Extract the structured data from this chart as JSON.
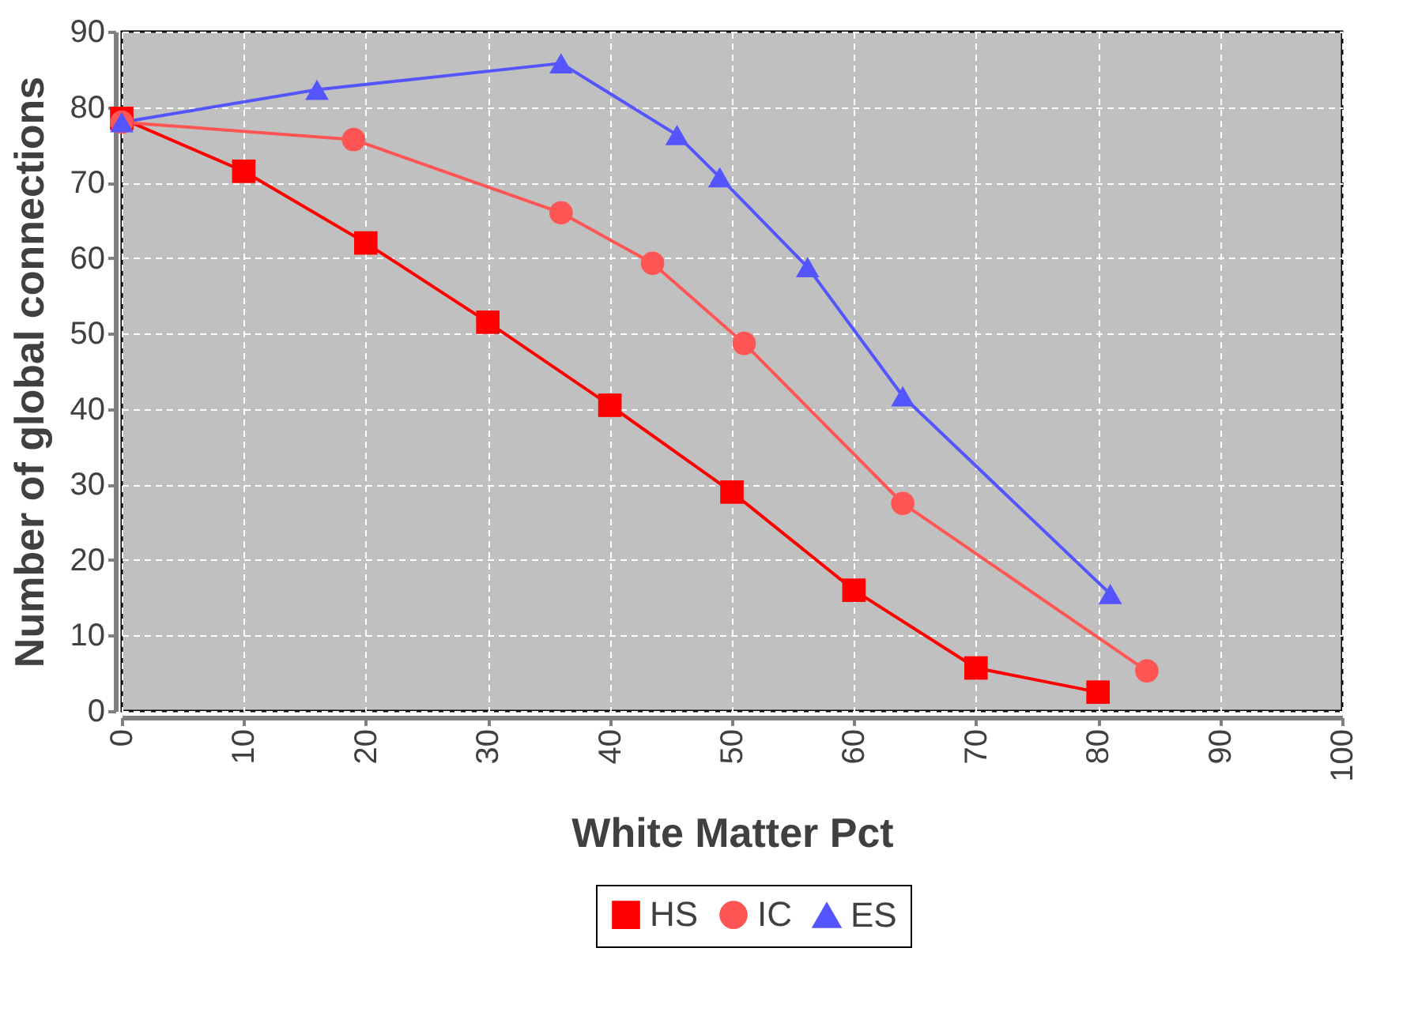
{
  "chart_data": {
    "type": "line",
    "xlabel": "White Matter Pct",
    "ylabel": "Number of global connections",
    "xlim": [
      0,
      100
    ],
    "ylim": [
      0,
      90
    ],
    "xticks": [
      0,
      10,
      20,
      30,
      40,
      50,
      60,
      70,
      80,
      90,
      100
    ],
    "yticks": [
      0,
      10,
      20,
      30,
      40,
      50,
      60,
      70,
      80,
      90
    ],
    "grid": true,
    "legend": "bottom",
    "line_style": "solid",
    "series": [
      {
        "name": "HS",
        "color": "#ff0000",
        "marker": "square",
        "x": [
          0,
          10,
          20,
          30,
          40,
          50,
          60,
          70,
          80
        ],
        "values": [
          78.5,
          71.5,
          62,
          51.5,
          40.5,
          29,
          16,
          5.7,
          2.5
        ]
      },
      {
        "name": "IC",
        "color": "#ff5555",
        "marker": "circle",
        "x": [
          0,
          19,
          36,
          43.5,
          51,
          64,
          84
        ],
        "values": [
          78,
          75.7,
          66,
          59.3,
          48.7,
          27.5,
          5.3
        ]
      },
      {
        "name": "ES",
        "color": "#5555ff",
        "marker": "triangle",
        "x": [
          0,
          16,
          36,
          45.5,
          49,
          56.2,
          64,
          81
        ],
        "values": [
          78,
          82.3,
          85.8,
          76.3,
          70.7,
          58.8,
          41.7,
          15.5
        ]
      }
    ]
  }
}
